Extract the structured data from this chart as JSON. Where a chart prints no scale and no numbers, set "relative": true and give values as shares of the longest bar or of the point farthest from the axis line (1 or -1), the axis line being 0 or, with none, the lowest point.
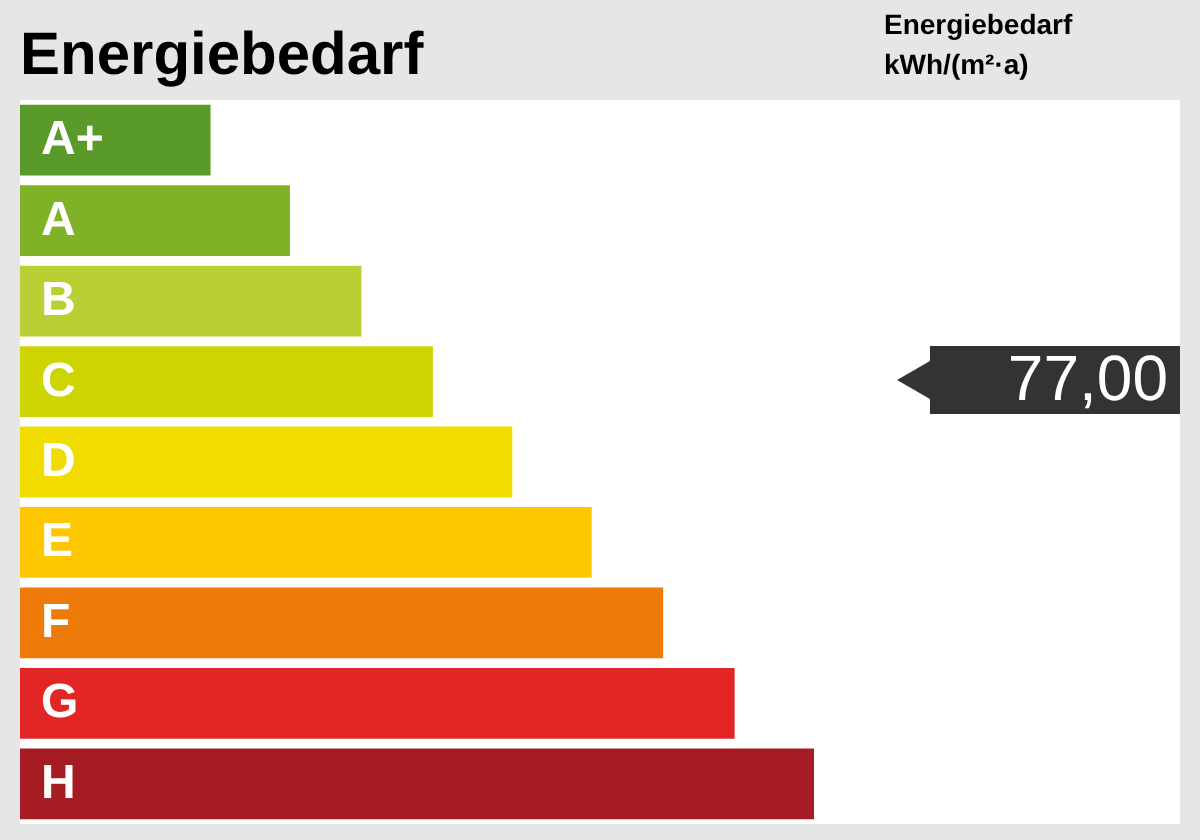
{
  "chart_data": {
    "type": "bar",
    "orientation": "horizontal",
    "relative": true,
    "title": "Energiebedarf",
    "categories": [
      "A+",
      "A",
      "B",
      "C",
      "D",
      "E",
      "F",
      "G",
      "H"
    ],
    "values": [
      0.24,
      0.34,
      0.43,
      0.52,
      0.62,
      0.72,
      0.81,
      0.9,
      1.0
    ],
    "colors": [
      "#5a9a2a",
      "#7fb227",
      "#b9cf34",
      "#cdd400",
      "#f0dc00",
      "#fdc800",
      "#ee7a0a",
      "#e22626",
      "#a51d23"
    ],
    "annotations": [
      "Energiebedarf kWh/(m²·a)",
      "77,00"
    ],
    "legend": false,
    "grid": false
  }
}
